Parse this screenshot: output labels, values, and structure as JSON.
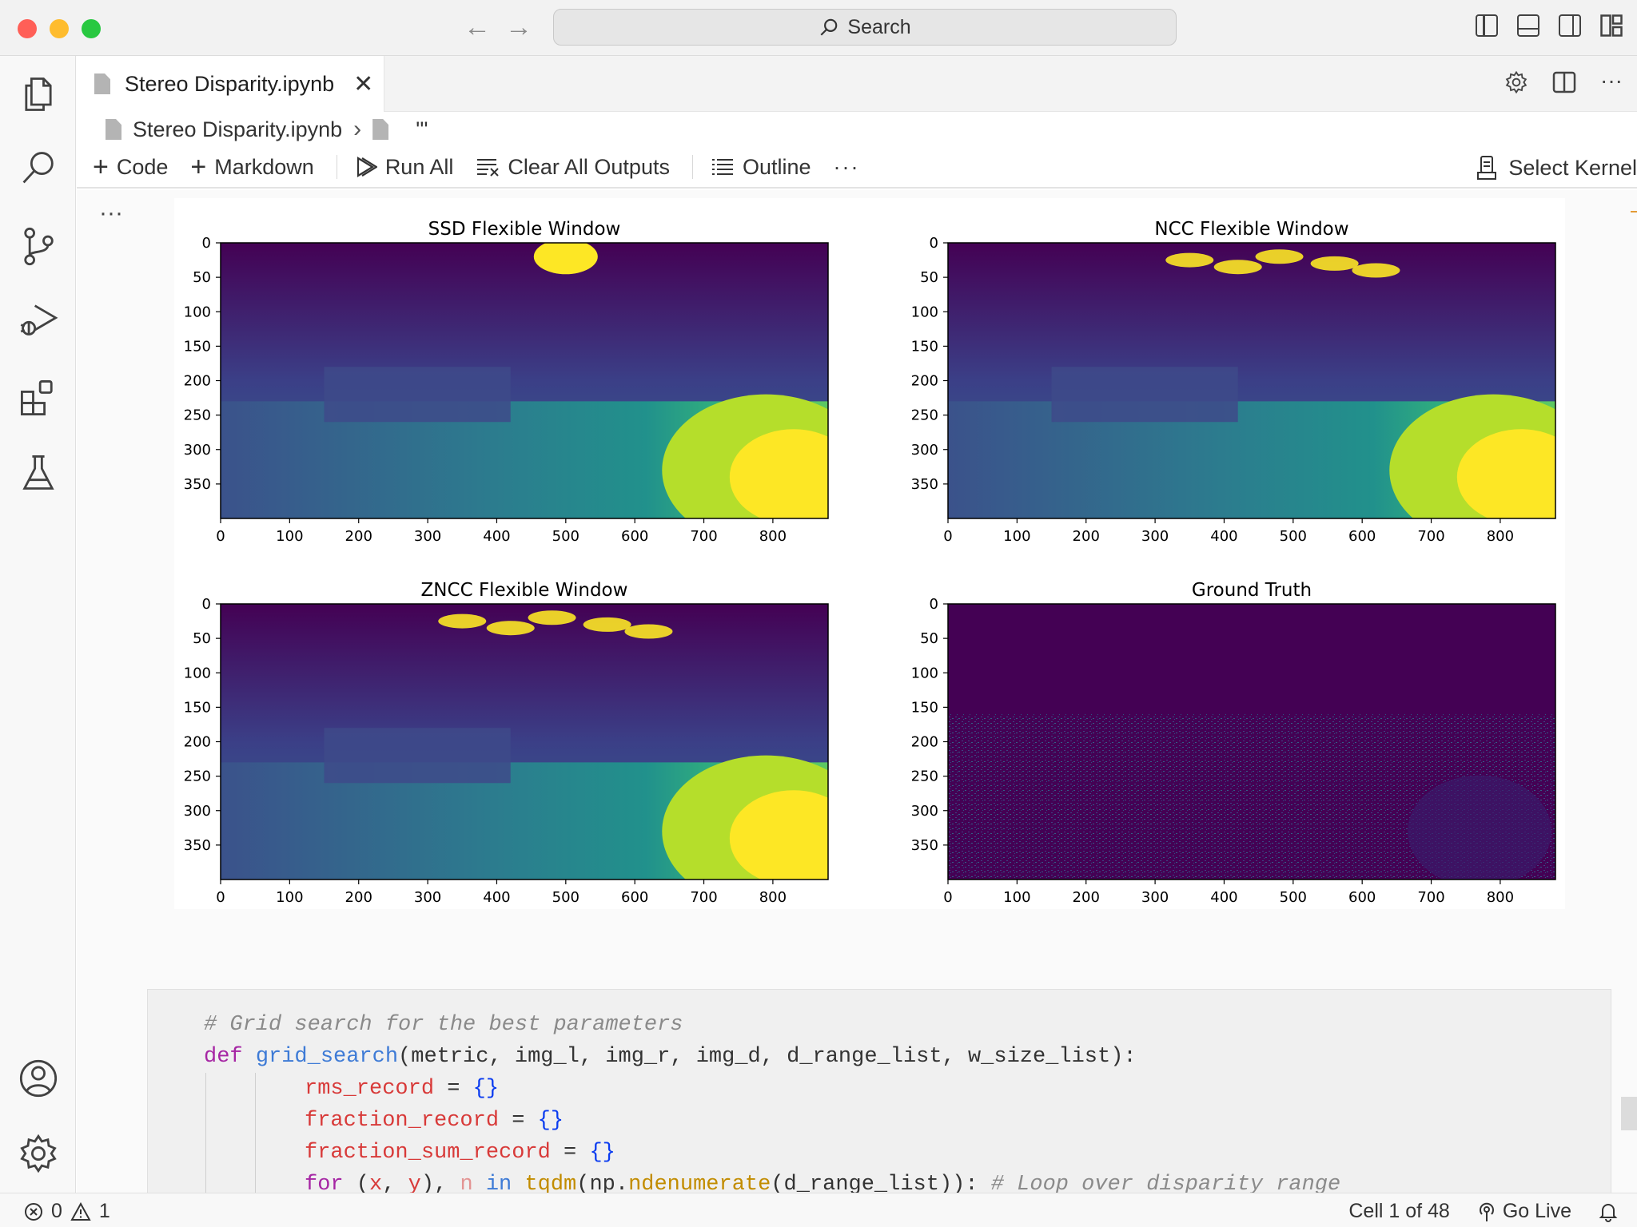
{
  "window": {
    "search_placeholder": "Search",
    "traffic_lights": {
      "close": "#ff5f57",
      "minimize": "#febc2e",
      "maximize": "#28c840"
    }
  },
  "activity_bar": {
    "icons": [
      "files-icon",
      "search-icon",
      "source-control-icon",
      "run-debug-icon",
      "extensions-icon",
      "testing-icon",
      "account-icon",
      "settings-gear-icon"
    ]
  },
  "tab": {
    "label": "Stereo Disparity.ipynb",
    "close_glyph": "✕"
  },
  "breadcrumb": {
    "file": "Stereo Disparity.ipynb",
    "separator": "›",
    "cell": "'''"
  },
  "toolbar": {
    "code_label": "Code",
    "markdown_label": "Markdown",
    "run_all_label": "Run All",
    "clear_outputs_label": "Clear All Outputs",
    "outline_label": "Outline",
    "more_label": "···",
    "select_kernel_label": "Select Kernel"
  },
  "cell_more_label": "···",
  "chart_data": [
    {
      "type": "heatmap",
      "title": "SSD Flexible Window",
      "xticks": [
        "0",
        "100",
        "200",
        "300",
        "400",
        "500",
        "600",
        "700",
        "800"
      ],
      "yticks": [
        "0",
        "50",
        "100",
        "150",
        "200",
        "250",
        "300",
        "350"
      ],
      "xlim": [
        0,
        880
      ],
      "ylim": [
        400,
        0
      ],
      "colormap": "viridis"
    },
    {
      "type": "heatmap",
      "title": "NCC Flexible Window",
      "xticks": [
        "0",
        "100",
        "200",
        "300",
        "400",
        "500",
        "600",
        "700",
        "800"
      ],
      "yticks": [
        "0",
        "50",
        "100",
        "150",
        "200",
        "250",
        "300",
        "350"
      ],
      "xlim": [
        0,
        880
      ],
      "ylim": [
        400,
        0
      ],
      "colormap": "viridis"
    },
    {
      "type": "heatmap",
      "title": "ZNCC Flexible Window",
      "xticks": [
        "0",
        "100",
        "200",
        "300",
        "400",
        "500",
        "600",
        "700",
        "800"
      ],
      "yticks": [
        "0",
        "50",
        "100",
        "150",
        "200",
        "250",
        "300",
        "350"
      ],
      "xlim": [
        0,
        880
      ],
      "ylim": [
        400,
        0
      ],
      "colormap": "viridis"
    },
    {
      "type": "heatmap",
      "title": "Ground Truth",
      "xticks": [
        "0",
        "100",
        "200",
        "300",
        "400",
        "500",
        "600",
        "700",
        "800"
      ],
      "yticks": [
        "0",
        "50",
        "100",
        "150",
        "200",
        "250",
        "300",
        "350"
      ],
      "xlim": [
        0,
        880
      ],
      "ylim": [
        400,
        0
      ],
      "colormap": "viridis"
    }
  ],
  "code": {
    "line1": "# Grid search for the best parameters",
    "line2_kw": "def",
    "line2_fn": "grid_search",
    "line2_rest": "(metric, img_l, img_r, img_d, d_range_list, w_size_list):",
    "line3_var": "rms_record",
    "line3_eq": " = ",
    "line3_val": "{}",
    "line4_var": "fraction_record",
    "line4_eq": " = ",
    "line4_val": "{}",
    "line5_var": "fraction_sum_record",
    "line5_eq": " = ",
    "line5_val": "{}",
    "line6_for": "for",
    "line6_a": " (",
    "line6_x": "x",
    "line6_b": ", ",
    "line6_y": "y",
    "line6_c": "), ",
    "line6_n": "n",
    "line6_in": " in ",
    "line6_tqdm": "tqdm",
    "line6_d": "(np.",
    "line6_nd": "ndenumerate",
    "line6_e": "(d_range_list)): ",
    "line6_comment": "# Loop over disparity range"
  },
  "status": {
    "errors": "0",
    "warnings": "1",
    "cell_position": "Cell 1 of 48",
    "go_live": "Go Live"
  }
}
